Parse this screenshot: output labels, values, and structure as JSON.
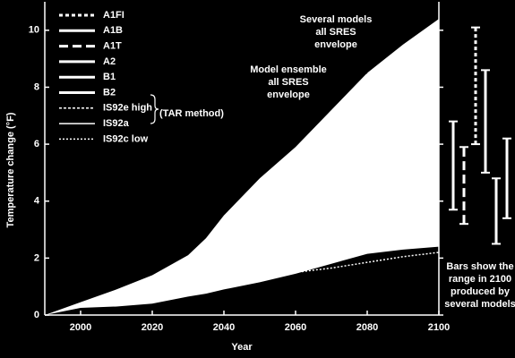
{
  "chart_data": {
    "type": "area-range",
    "xlabel": "Year",
    "ylabel": "Temperature change (°F)",
    "xlim": [
      1990,
      2100
    ],
    "ylim": [
      0,
      11
    ],
    "xticks": [
      2000,
      2020,
      2040,
      2060,
      2080,
      2100
    ],
    "yticks": [
      0,
      2,
      4,
      6,
      8,
      10
    ],
    "x": [
      1990,
      2000,
      2010,
      2020,
      2030,
      2035,
      2040,
      2050,
      2060,
      2070,
      2080,
      2090,
      2100
    ],
    "upper": [
      0,
      0.45,
      0.9,
      1.4,
      2.1,
      2.7,
      3.5,
      4.8,
      5.9,
      7.2,
      8.5,
      9.5,
      10.4
    ],
    "lower": [
      0,
      0.25,
      0.3,
      0.4,
      0.65,
      0.75,
      0.9,
      1.15,
      1.45,
      1.8,
      2.15,
      2.3,
      2.4
    ],
    "envelope_color": "#ffffff",
    "low_line": {
      "x": [
        2040,
        2050,
        2060,
        2070,
        2080,
        2090,
        2100
      ],
      "values": [
        1.1,
        1.3,
        1.5,
        1.65,
        1.85,
        2.05,
        2.2
      ]
    },
    "legend": [
      {
        "name": "A1FI",
        "dash": "4,3"
      },
      {
        "name": "A1B",
        "dash": "none"
      },
      {
        "name": "A1T",
        "dash": "10,5"
      },
      {
        "name": "A2",
        "dash": "none"
      },
      {
        "name": "B1",
        "dash": "none"
      },
      {
        "name": "B2",
        "dash": "none"
      },
      {
        "name": "IS92e high",
        "dash": "3,2"
      },
      {
        "name": "IS92a",
        "dash": "none"
      },
      {
        "name": "IS92c low",
        "dash": "2,2"
      }
    ],
    "legend_note": "(TAR method)",
    "annotations": [
      [
        "Several models",
        "all SRES",
        "envelope"
      ],
      [
        "Model ensemble",
        "all SRES",
        "envelope"
      ]
    ],
    "bars_note": [
      "Bars show the",
      "range in 2100",
      "produced by",
      "several models"
    ],
    "bars": [
      {
        "low": 3.7,
        "high": 6.8,
        "dash": "none"
      },
      {
        "low": 3.2,
        "high": 5.9,
        "dash": "10,5"
      },
      {
        "low": 6.0,
        "high": 10.1,
        "dash": "4,3"
      },
      {
        "low": 5.0,
        "high": 8.6,
        "dash": "none"
      },
      {
        "low": 2.5,
        "high": 4.8,
        "dash": "none"
      },
      {
        "low": 3.4,
        "high": 6.2,
        "dash": "none"
      }
    ]
  }
}
